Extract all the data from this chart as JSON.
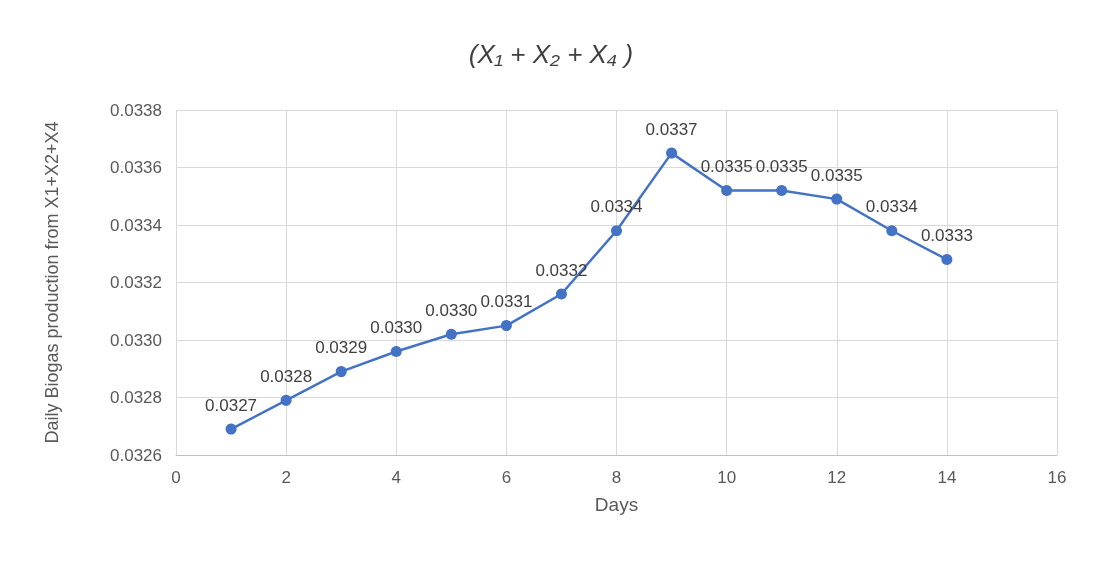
{
  "chart_data": {
    "type": "line",
    "title": "(X₁ + X₂ + X₄ )",
    "xlabel": "Days",
    "ylabel": "Daily Biogas production from X1+X2+X4",
    "x": [
      1,
      2,
      3,
      4,
      5,
      6,
      7,
      8,
      9,
      10,
      11,
      12,
      13,
      14
    ],
    "series": [
      {
        "color": "#4472c4",
        "values": [
          0.03269,
          0.03279,
          0.03289,
          0.03296,
          0.03302,
          0.03305,
          0.03316,
          0.03338,
          0.03365,
          0.03352,
          0.03352,
          0.03349,
          0.03338,
          0.03328
        ],
        "value_labels": [
          "0.0327",
          "0.0328",
          "0.0329",
          "0.0330",
          "0.0330",
          "0.0331",
          "0.0332",
          "0.0334",
          "0.0337",
          "0.0335",
          "0.0335",
          "0.0335",
          "0.0334",
          "0.0333"
        ]
      }
    ],
    "xlim": [
      0,
      16
    ],
    "xticks": [
      0,
      2,
      4,
      6,
      8,
      10,
      12,
      14,
      16
    ],
    "ylim": [
      0.0326,
      0.0338
    ],
    "yticks": [
      0.0326,
      0.0328,
      {
        "value": 0.033,
        "label": "0.0330"
      },
      0.0332,
      0.0334,
      0.0336,
      0.0338
    ],
    "grid": true,
    "marker": "circle",
    "line_style": "solid"
  }
}
